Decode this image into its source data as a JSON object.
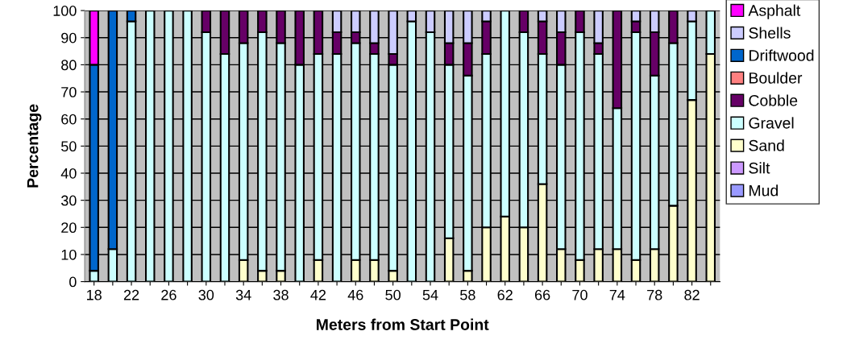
{
  "chart_data": {
    "type": "bar",
    "stacked": true,
    "xlabel": "Meters from Start Point",
    "ylabel": "Percentage",
    "categories": [
      "18",
      null,
      "22",
      null,
      "26",
      null,
      "30",
      null,
      "34",
      null,
      "38",
      null,
      "42",
      null,
      "46",
      null,
      "50",
      null,
      "54",
      null,
      "58",
      null,
      "62",
      null,
      "66",
      null,
      "70",
      null,
      "74",
      null,
      "78",
      null,
      "82",
      null
    ],
    "series": [
      {
        "name": "Mud",
        "color": "#9999ff",
        "values": [
          0,
          0,
          0,
          0,
          0,
          0,
          0,
          0,
          0,
          0,
          0,
          0,
          0,
          0,
          0,
          0,
          0,
          0,
          0,
          0,
          0,
          0,
          0,
          0,
          0,
          0,
          0,
          0,
          0,
          0,
          0,
          0,
          0,
          0
        ]
      },
      {
        "name": "Silt",
        "color": "#cc99ff",
        "values": [
          0,
          0,
          0,
          0,
          0,
          0,
          0,
          0,
          0,
          0,
          0,
          0,
          0,
          0,
          0,
          0,
          0,
          0,
          0,
          0,
          0,
          0,
          0,
          0,
          0,
          0,
          0,
          0,
          0,
          0,
          0,
          0,
          0,
          0
        ]
      },
      {
        "name": "Sand",
        "color": "#ffffcc",
        "values": [
          0,
          0,
          0,
          0,
          0,
          0,
          0,
          0,
          8,
          4,
          4,
          0,
          8,
          0,
          8,
          8,
          4,
          0,
          0,
          16,
          4,
          20,
          24,
          20,
          36,
          12,
          8,
          12,
          12,
          8,
          12,
          28,
          67,
          84
        ]
      },
      {
        "name": "Gravel",
        "color": "#ccffff",
        "values": [
          4,
          12,
          96,
          100,
          100,
          100,
          92,
          84,
          80,
          88,
          84,
          80,
          76,
          84,
          80,
          76,
          76,
          96,
          92,
          64,
          72,
          64,
          76,
          72,
          48,
          68,
          84,
          72,
          52,
          84,
          64,
          60,
          29,
          16
        ]
      },
      {
        "name": "Cobble",
        "color": "#660066",
        "values": [
          0,
          0,
          0,
          0,
          0,
          0,
          8,
          16,
          12,
          8,
          12,
          20,
          16,
          8,
          4,
          4,
          4,
          0,
          0,
          8,
          12,
          12,
          0,
          8,
          12,
          12,
          8,
          4,
          36,
          4,
          16,
          12,
          0,
          0
        ]
      },
      {
        "name": "Boulder",
        "color": "#ff8080",
        "values": [
          0,
          0,
          0,
          0,
          0,
          0,
          0,
          0,
          0,
          0,
          0,
          0,
          0,
          0,
          0,
          0,
          0,
          0,
          0,
          0,
          0,
          0,
          0,
          0,
          0,
          0,
          0,
          0,
          0,
          0,
          0,
          0,
          0,
          0
        ]
      },
      {
        "name": "Driftwood",
        "color": "#0066cc",
        "values": [
          76,
          88,
          4,
          0,
          0,
          0,
          0,
          0,
          0,
          0,
          0,
          0,
          0,
          0,
          0,
          0,
          0,
          0,
          0,
          0,
          0,
          0,
          0,
          0,
          0,
          0,
          0,
          0,
          0,
          0,
          0,
          0,
          0,
          0
        ]
      },
      {
        "name": "Shells",
        "color": "#ccccff",
        "values": [
          0,
          0,
          0,
          0,
          0,
          0,
          0,
          0,
          0,
          0,
          0,
          0,
          0,
          8,
          8,
          12,
          16,
          4,
          8,
          12,
          12,
          4,
          0,
          0,
          4,
          8,
          0,
          12,
          0,
          4,
          8,
          0,
          4,
          0
        ]
      },
      {
        "name": "Asphalt",
        "color": "#ff00ff",
        "values": [
          20,
          0,
          0,
          0,
          0,
          0,
          0,
          0,
          0,
          0,
          0,
          0,
          0,
          0,
          0,
          0,
          0,
          0,
          0,
          0,
          0,
          0,
          0,
          0,
          0,
          0,
          0,
          0,
          0,
          0,
          0,
          0,
          0,
          0
        ]
      }
    ],
    "ylim": [
      0,
      100
    ],
    "yticks": [
      0,
      10,
      20,
      30,
      40,
      50,
      60,
      70,
      80,
      90,
      100
    ],
    "grid": "y",
    "legend": "right"
  }
}
